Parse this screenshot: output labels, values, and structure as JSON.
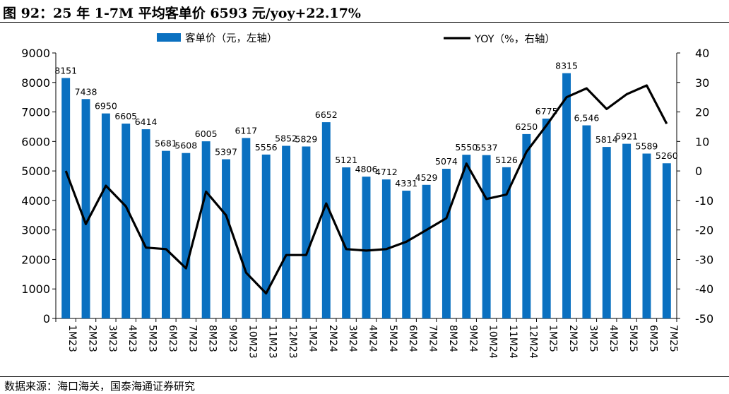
{
  "header": {
    "title": "图 92：25 年 1-7M 平均客单价 6593 元/yoy+22.17%"
  },
  "footer": {
    "source": "数据来源：海口海关，国泰海通证券研究"
  },
  "colors": {
    "bar": "#0a70c0",
    "line": "#000000"
  },
  "chart_data": {
    "type": "bar",
    "title": "",
    "categories": [
      "1M23",
      "2M23",
      "3M23",
      "4M23",
      "5M23",
      "6M23",
      "7M23",
      "8M23",
      "9M23",
      "10M23",
      "11M23",
      "12M23",
      "1M24",
      "2M24",
      "3M24",
      "4M24",
      "5M24",
      "6M24",
      "7M24",
      "8M24",
      "9M24",
      "10M24",
      "11M24",
      "12M24",
      "1M25",
      "2M25",
      "3M25",
      "4M25",
      "5M25",
      "6M25",
      "7M25"
    ],
    "series": [
      {
        "name": "客单价（元，左轴）",
        "type": "bar",
        "axis": "left",
        "values": [
          8151,
          7438,
          6950,
          6605,
          6414,
          5681,
          5608,
          6005,
          5397,
          6117,
          5556,
          5852,
          5829,
          6652,
          5121,
          4806,
          4712,
          4331,
          4529,
          5074,
          5550,
          5537,
          5126,
          6250,
          6775,
          8315,
          6546,
          5814,
          5921,
          5589,
          5260
        ],
        "labels": [
          "8151",
          "7438",
          "6950",
          "6605",
          "6414",
          "5681",
          "5608",
          "6005",
          "5397",
          "6117",
          "5556",
          "5852",
          "5829",
          "6652",
          "5121",
          "4806",
          "4712",
          "4331",
          "4529",
          "5074",
          "5550",
          "5537",
          "5126",
          "6250",
          "6775",
          "8315",
          "6,546",
          "5814",
          "5921",
          "5589",
          "5260"
        ]
      },
      {
        "name": "YOY（%，右轴）",
        "type": "line",
        "axis": "right",
        "values": [
          0,
          -18,
          -5,
          -12,
          -26,
          -26.5,
          -33,
          -7,
          -15,
          -34.5,
          -41.5,
          -28.5,
          -28.5,
          -11,
          -26.5,
          -27,
          -26.5,
          -24,
          -20,
          -16,
          2.5,
          -9.5,
          -8,
          6.5,
          15.5,
          25,
          28,
          21,
          26,
          29,
          16
        ]
      }
    ],
    "ylim_left": [
      0,
      9000
    ],
    "yticks_left": [
      0,
      1000,
      2000,
      3000,
      4000,
      5000,
      6000,
      7000,
      8000,
      9000
    ],
    "ylim_right": [
      -50,
      40
    ],
    "yticks_right": [
      -50,
      -40,
      -30,
      -20,
      -10,
      0,
      10,
      20,
      30,
      40
    ],
    "legend": "top",
    "grid": false
  }
}
